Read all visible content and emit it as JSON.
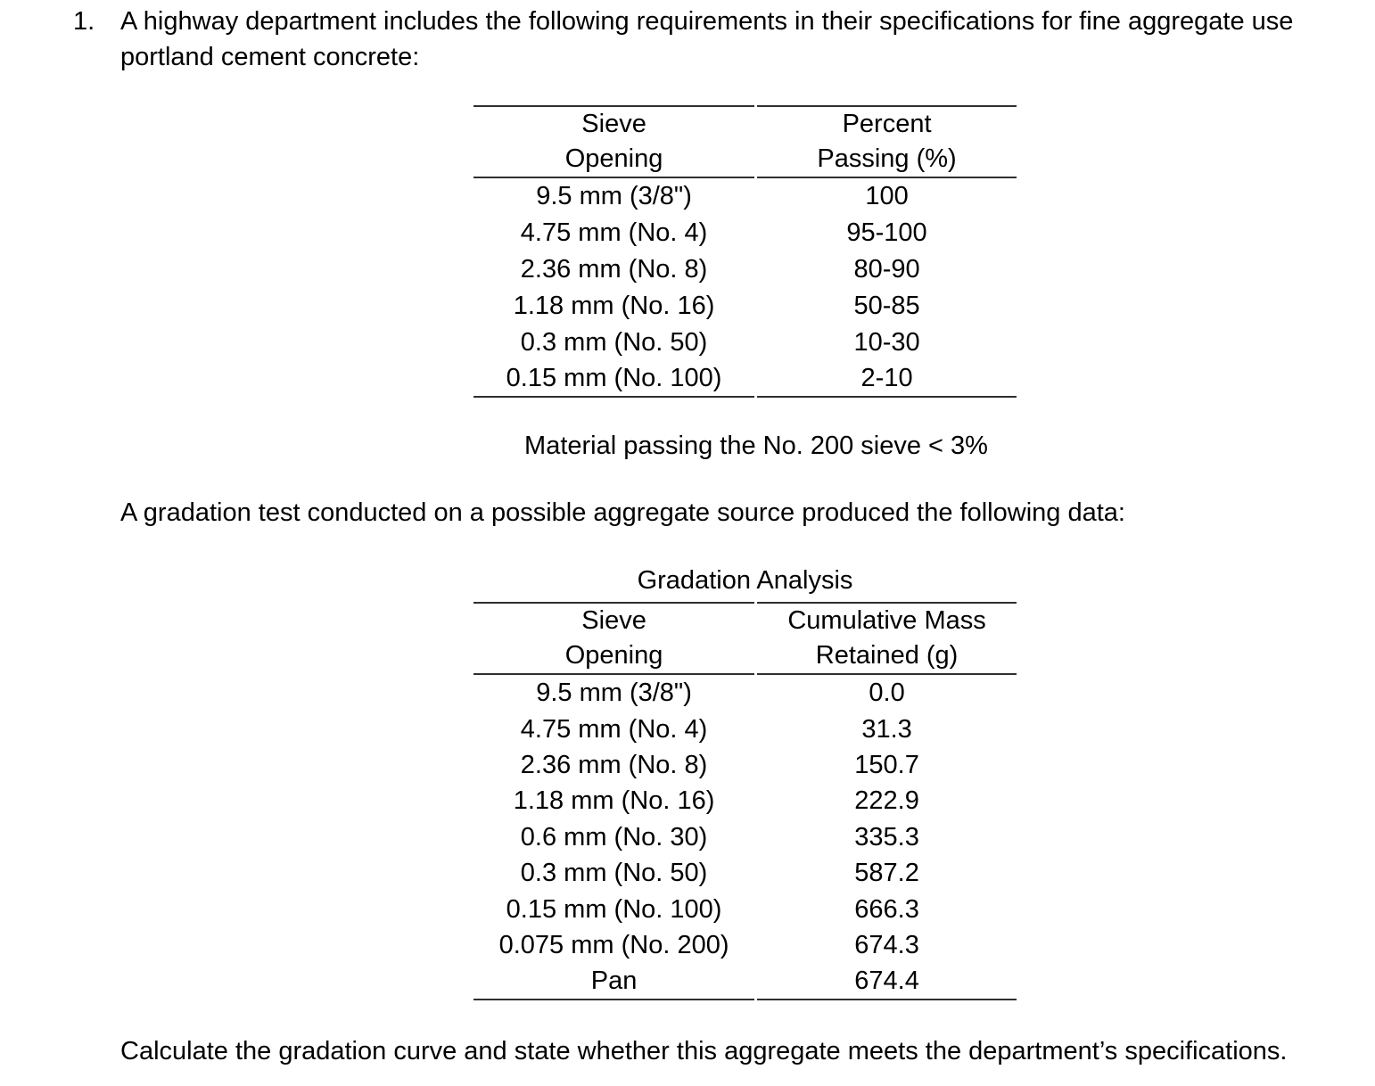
{
  "intro": {
    "number": "1.",
    "lines": [
      "A highway department includes the following requirements in their specifications for fine aggregate use",
      "portland cement concrete:"
    ]
  },
  "spec_table": {
    "columns": [
      "Sieve\nOpening",
      "Percent\nPassing (%)"
    ],
    "rows": [
      [
        "9.5 mm (3/8\")",
        "100"
      ],
      [
        "4.75 mm (No. 4)",
        "95-100"
      ],
      [
        "2.36 mm (No. 8)",
        "80-90"
      ],
      [
        "1.18 mm (No. 16)",
        "50-85"
      ],
      [
        "0.3 mm (No. 50)",
        "10-30"
      ],
      [
        "0.15 mm (No. 100)",
        "2-10"
      ]
    ],
    "footnote": "Material passing the No. 200 sieve < 3%"
  },
  "middle_text": "A gradation test conducted on a possible aggregate source produced the following data:",
  "gradation_table": {
    "title": "Gradation Analysis",
    "columns": [
      "Sieve\nOpening",
      "Cumulative Mass\nRetained (g)"
    ],
    "rows": [
      [
        "9.5 mm (3/8\")",
        "0.0"
      ],
      [
        "4.75 mm (No. 4)",
        "31.3"
      ],
      [
        "2.36 mm (No. 8)",
        "150.7"
      ],
      [
        "1.18 mm (No. 16)",
        "222.9"
      ],
      [
        "0.6 mm (No. 30)",
        "335.3"
      ],
      [
        "0.3 mm (No. 50)",
        "587.2"
      ],
      [
        "0.15 mm (No. 100)",
        "666.3"
      ],
      [
        "0.075 mm (No. 200)",
        "674.3"
      ],
      [
        "Pan",
        "674.4"
      ]
    ]
  },
  "closing_text": "Calculate the gradation curve and state whether this aggregate meets the department’s specifications."
}
